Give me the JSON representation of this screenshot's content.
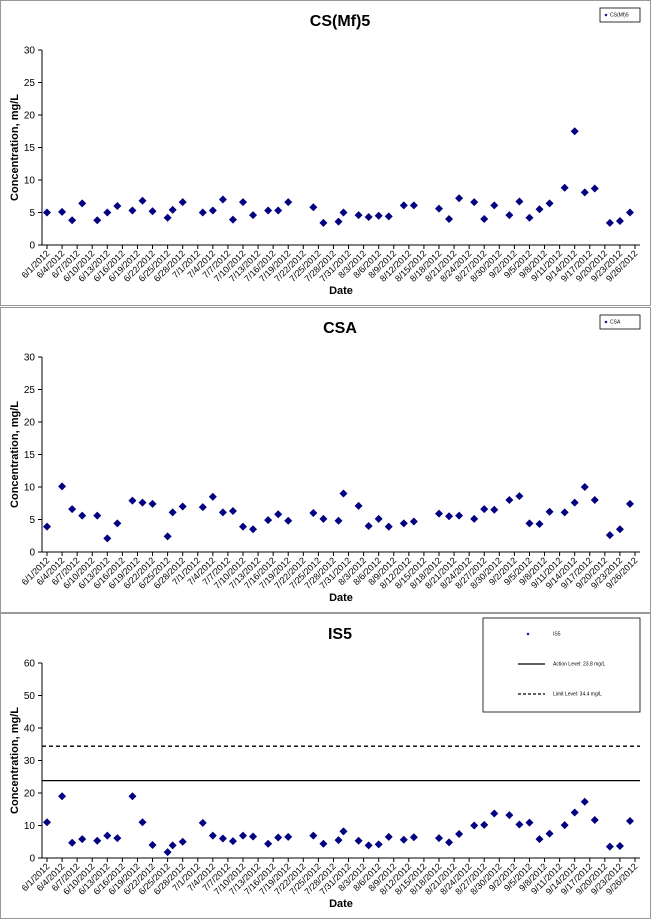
{
  "chart_data": [
    {
      "type": "scatter",
      "title": "CS(Mf)5",
      "x_label": "Date",
      "y_label": "Concentration, mg/L",
      "legend": "upper right",
      "xlim": [
        "6/1/2012",
        "9/26/2012"
      ],
      "ylim": [
        0,
        30
      ],
      "yticks": [
        0,
        5,
        10,
        15,
        20,
        25,
        30
      ],
      "xticks": [
        "6/1/2012",
        "6/4/2012",
        "6/7/2012",
        "6/10/2012",
        "6/13/2012",
        "6/16/2012",
        "6/19/2012",
        "6/22/2012",
        "6/25/2012",
        "6/28/2012",
        "7/1/2012",
        "7/4/2012",
        "7/7/2012",
        "7/10/2012",
        "7/13/2012",
        "7/16/2012",
        "7/19/2012",
        "7/22/2012",
        "7/25/2012",
        "7/28/2012",
        "7/31/2012",
        "8/3/2012",
        "8/6/2012",
        "8/9/2012",
        "8/12/2012",
        "8/15/2012",
        "8/18/2012",
        "8/21/2012",
        "8/24/2012",
        "8/27/2012",
        "8/30/2012",
        "9/2/2012",
        "9/5/2012",
        "9/8/2012",
        "9/11/2012",
        "9/14/2012",
        "9/17/2012",
        "9/20/2012",
        "9/23/2012",
        "9/26/2012"
      ],
      "x": [
        "6/1/2012",
        "6/4/2012",
        "6/6/2012",
        "6/8/2012",
        "6/11/2012",
        "6/13/2012",
        "6/15/2012",
        "6/18/2012",
        "6/20/2012",
        "6/22/2012",
        "6/25/2012",
        "6/26/2012",
        "6/28/2012",
        "7/2/2012",
        "7/4/2012",
        "7/6/2012",
        "7/8/2012",
        "7/10/2012",
        "7/12/2012",
        "7/15/2012",
        "7/17/2012",
        "7/19/2012",
        "7/24/2012",
        "7/26/2012",
        "7/29/2012",
        "7/30/2012",
        "8/2/2012",
        "8/4/2012",
        "8/6/2012",
        "8/8/2012",
        "8/11/2012",
        "8/13/2012",
        "8/18/2012",
        "8/20/2012",
        "8/22/2012",
        "8/25/2012",
        "8/27/2012",
        "8/29/2012",
        "9/1/2012",
        "9/3/2012",
        "9/5/2012",
        "9/7/2012",
        "9/9/2012",
        "9/12/2012",
        "9/14/2012",
        "9/16/2012",
        "9/18/2012",
        "9/21/2012",
        "9/23/2012",
        "9/25/2012"
      ],
      "series": [
        {
          "name": "CS(Mf)5",
          "color": "#000080",
          "values": [
            5,
            5.1,
            3.8,
            6.4,
            3.8,
            5,
            6,
            5.3,
            6.8,
            5.2,
            4.2,
            5.4,
            6.6,
            5,
            5.3,
            7,
            3.9,
            6.6,
            4.6,
            5.3,
            5.3,
            6.6,
            5.8,
            3.4,
            3.6,
            5,
            4.6,
            4.3,
            4.5,
            4.4,
            6.1,
            6.1,
            5.6,
            4,
            7.2,
            6.6,
            4,
            6.1,
            4.6,
            6.7,
            4.2,
            5.5,
            6.4,
            8.8,
            17.5,
            8.1,
            8.7,
            3.4,
            3.7,
            5
          ]
        }
      ]
    },
    {
      "type": "scatter",
      "title": "CSA",
      "x_label": "Date",
      "y_label": "Concentration, mg/L",
      "legend": "upper right",
      "xlim": [
        "6/1/2012",
        "9/26/2012"
      ],
      "ylim": [
        0,
        30
      ],
      "yticks": [
        0,
        5,
        10,
        15,
        20,
        25,
        30
      ],
      "xticks": [
        "6/1/2012",
        "6/4/2012",
        "6/7/2012",
        "6/10/2012",
        "6/13/2012",
        "6/16/2012",
        "6/19/2012",
        "6/22/2012",
        "6/25/2012",
        "6/28/2012",
        "7/1/2012",
        "7/4/2012",
        "7/7/2012",
        "7/10/2012",
        "7/13/2012",
        "7/16/2012",
        "7/19/2012",
        "7/22/2012",
        "7/25/2012",
        "7/28/2012",
        "7/31/2012",
        "8/3/2012",
        "8/6/2012",
        "8/9/2012",
        "8/12/2012",
        "8/15/2012",
        "8/18/2012",
        "8/21/2012",
        "8/24/2012",
        "8/27/2012",
        "8/30/2012",
        "9/2/2012",
        "9/5/2012",
        "9/8/2012",
        "9/11/2012",
        "9/14/2012",
        "9/17/2012",
        "9/20/2012",
        "9/23/2012",
        "9/26/2012"
      ],
      "x": [
        "6/1/2012",
        "6/4/2012",
        "6/6/2012",
        "6/8/2012",
        "6/11/2012",
        "6/13/2012",
        "6/15/2012",
        "6/18/2012",
        "6/20/2012",
        "6/22/2012",
        "6/25/2012",
        "6/26/2012",
        "6/28/2012",
        "7/2/2012",
        "7/4/2012",
        "7/6/2012",
        "7/8/2012",
        "7/10/2012",
        "7/12/2012",
        "7/15/2012",
        "7/17/2012",
        "7/19/2012",
        "7/24/2012",
        "7/26/2012",
        "7/29/2012",
        "7/30/2012",
        "8/2/2012",
        "8/4/2012",
        "8/6/2012",
        "8/8/2012",
        "8/11/2012",
        "8/13/2012",
        "8/18/2012",
        "8/20/2012",
        "8/22/2012",
        "8/25/2012",
        "8/27/2012",
        "8/29/2012",
        "9/1/2012",
        "9/3/2012",
        "9/5/2012",
        "9/7/2012",
        "9/9/2012",
        "9/12/2012",
        "9/14/2012",
        "9/16/2012",
        "9/18/2012",
        "9/21/2012",
        "9/23/2012",
        "9/25/2012"
      ],
      "series": [
        {
          "name": "CSA",
          "color": "#000080",
          "values": [
            3.9,
            10.1,
            6.6,
            5.6,
            5.6,
            2.1,
            4.4,
            7.9,
            7.6,
            7.4,
            2.4,
            6.1,
            7,
            6.9,
            8.5,
            6.1,
            6.3,
            3.9,
            3.5,
            4.9,
            5.8,
            4.8,
            6,
            5.1,
            4.8,
            9,
            7.1,
            4,
            5.1,
            3.9,
            4.4,
            4.7,
            5.9,
            5.5,
            5.6,
            5.1,
            6.6,
            6.5,
            8,
            8.6,
            4.4,
            4.3,
            6.2,
            6.1,
            7.6,
            10,
            8,
            2.6,
            3.5,
            7.4
          ]
        }
      ]
    },
    {
      "type": "scatter",
      "title": "IS5",
      "x_label": "Date",
      "y_label": "Concentration, mg/L",
      "legend": "upper right",
      "xlim": [
        "6/1/2012",
        "9/26/2012"
      ],
      "ylim": [
        0,
        60
      ],
      "yticks": [
        0,
        10,
        20,
        30,
        40,
        50,
        60
      ],
      "xticks": [
        "6/1/2012",
        "6/4/2012",
        "6/7/2012",
        "6/10/2012",
        "6/13/2012",
        "6/16/2012",
        "6/19/2012",
        "6/22/2012",
        "6/25/2012",
        "6/28/2012",
        "7/1/2012",
        "7/4/2012",
        "7/7/2012",
        "7/10/2012",
        "7/13/2012",
        "7/16/2012",
        "7/19/2012",
        "7/22/2012",
        "7/25/2012",
        "7/28/2012",
        "7/31/2012",
        "8/3/2012",
        "8/6/2012",
        "8/9/2012",
        "8/12/2012",
        "8/15/2012",
        "8/18/2012",
        "8/21/2012",
        "8/24/2012",
        "8/27/2012",
        "8/30/2012",
        "9/2/2012",
        "9/5/2012",
        "9/8/2012",
        "9/11/2012",
        "9/14/2012",
        "9/17/2012",
        "9/20/2012",
        "9/23/2012",
        "9/26/2012"
      ],
      "x": [
        "6/1/2012",
        "6/4/2012",
        "6/6/2012",
        "6/8/2012",
        "6/11/2012",
        "6/13/2012",
        "6/15/2012",
        "6/18/2012",
        "6/20/2012",
        "6/22/2012",
        "6/25/2012",
        "6/26/2012",
        "6/28/2012",
        "7/2/2012",
        "7/4/2012",
        "7/6/2012",
        "7/8/2012",
        "7/10/2012",
        "7/12/2012",
        "7/15/2012",
        "7/17/2012",
        "7/19/2012",
        "7/24/2012",
        "7/26/2012",
        "7/29/2012",
        "7/30/2012",
        "8/2/2012",
        "8/4/2012",
        "8/6/2012",
        "8/8/2012",
        "8/11/2012",
        "8/13/2012",
        "8/18/2012",
        "8/20/2012",
        "8/22/2012",
        "8/25/2012",
        "8/27/2012",
        "8/29/2012",
        "9/1/2012",
        "9/3/2012",
        "9/5/2012",
        "9/7/2012",
        "9/9/2012",
        "9/12/2012",
        "9/14/2012",
        "9/16/2012",
        "9/18/2012",
        "9/21/2012",
        "9/23/2012",
        "9/25/2012"
      ],
      "series": [
        {
          "name": "IS5",
          "color": "#000080",
          "values": [
            11,
            19,
            4.7,
            5.8,
            5.3,
            6.9,
            6.1,
            19,
            11,
            4,
            1.8,
            3.9,
            5,
            10.8,
            6.9,
            6,
            5.2,
            6.9,
            6.6,
            4.4,
            6.3,
            6.5,
            6.9,
            4.4,
            5.5,
            8.2,
            5.3,
            3.9,
            4.2,
            6.5,
            5.6,
            6.4,
            6.1,
            4.8,
            7.4,
            10,
            10.2,
            13.7,
            13.2,
            10.3,
            10.9,
            5.8,
            7.5,
            10.1,
            14,
            17.3,
            11.7,
            3.5,
            3.7,
            11.4
          ]
        }
      ],
      "reference_lines": [
        {
          "name": "Action Level: 23.8 mg/L",
          "value": 23.8,
          "style": "solid",
          "color": "#000000"
        },
        {
          "name": "Limit Level: 34.4 mg/L",
          "value": 34.4,
          "style": "dashed",
          "color": "#000000"
        }
      ]
    }
  ]
}
